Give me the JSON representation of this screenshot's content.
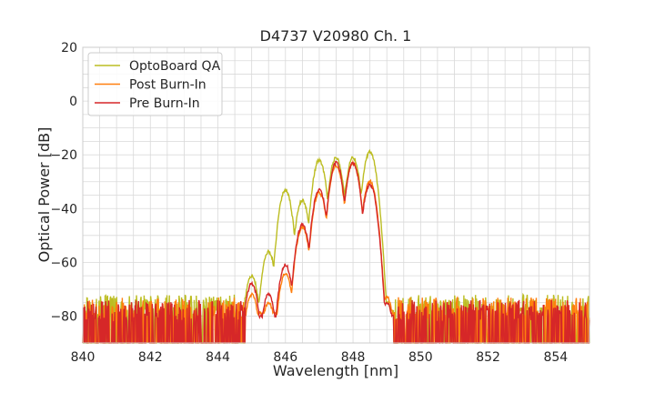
{
  "chart_data": {
    "type": "line",
    "title": "D4737 V20980 Ch. 1",
    "xlabel": "Wavelength [nm]",
    "ylabel": "Optical Power [dB]",
    "xlim": [
      840,
      855
    ],
    "ylim": [
      -90,
      20
    ],
    "xticks": [
      840,
      842,
      844,
      846,
      848,
      850,
      852,
      854
    ],
    "yticks": [
      20,
      0,
      -20,
      -40,
      -60,
      -80
    ],
    "grid": true,
    "legend_position": "top-left",
    "series": [
      {
        "name": "OptoBoard QA",
        "color": "#bcbd22",
        "peaks": [
          [
            845.0,
            -65
          ],
          [
            845.5,
            -56
          ],
          [
            846.0,
            -33
          ],
          [
            846.5,
            -37
          ],
          [
            847.0,
            -22
          ],
          [
            847.5,
            -21
          ],
          [
            848.0,
            -21
          ],
          [
            848.5,
            -19
          ],
          [
            849.0,
            -75
          ],
          [
            849.2,
            -82
          ]
        ],
        "noise_floor": [
          -90,
          -72
        ]
      },
      {
        "name": "Post Burn-In",
        "color": "#ff7f0e",
        "peaks": [
          [
            845.0,
            -72
          ],
          [
            845.5,
            -75
          ],
          [
            846.0,
            -64
          ],
          [
            846.5,
            -47
          ],
          [
            847.0,
            -34
          ],
          [
            847.5,
            -24
          ],
          [
            848.0,
            -23
          ],
          [
            848.5,
            -30
          ],
          [
            849.0,
            -73
          ],
          [
            849.2,
            -86
          ]
        ],
        "noise_floor": [
          -90,
          -73
        ]
      },
      {
        "name": "Pre Burn-In",
        "color": "#d62728",
        "peaks": [
          [
            845.0,
            -68
          ],
          [
            845.5,
            -72
          ],
          [
            846.0,
            -61
          ],
          [
            846.5,
            -46
          ],
          [
            847.0,
            -33
          ],
          [
            847.5,
            -23
          ],
          [
            848.0,
            -23
          ],
          [
            848.5,
            -31
          ],
          [
            849.0,
            -75
          ],
          [
            849.2,
            -89
          ]
        ],
        "noise_floor": [
          -90,
          -74
        ]
      }
    ]
  }
}
